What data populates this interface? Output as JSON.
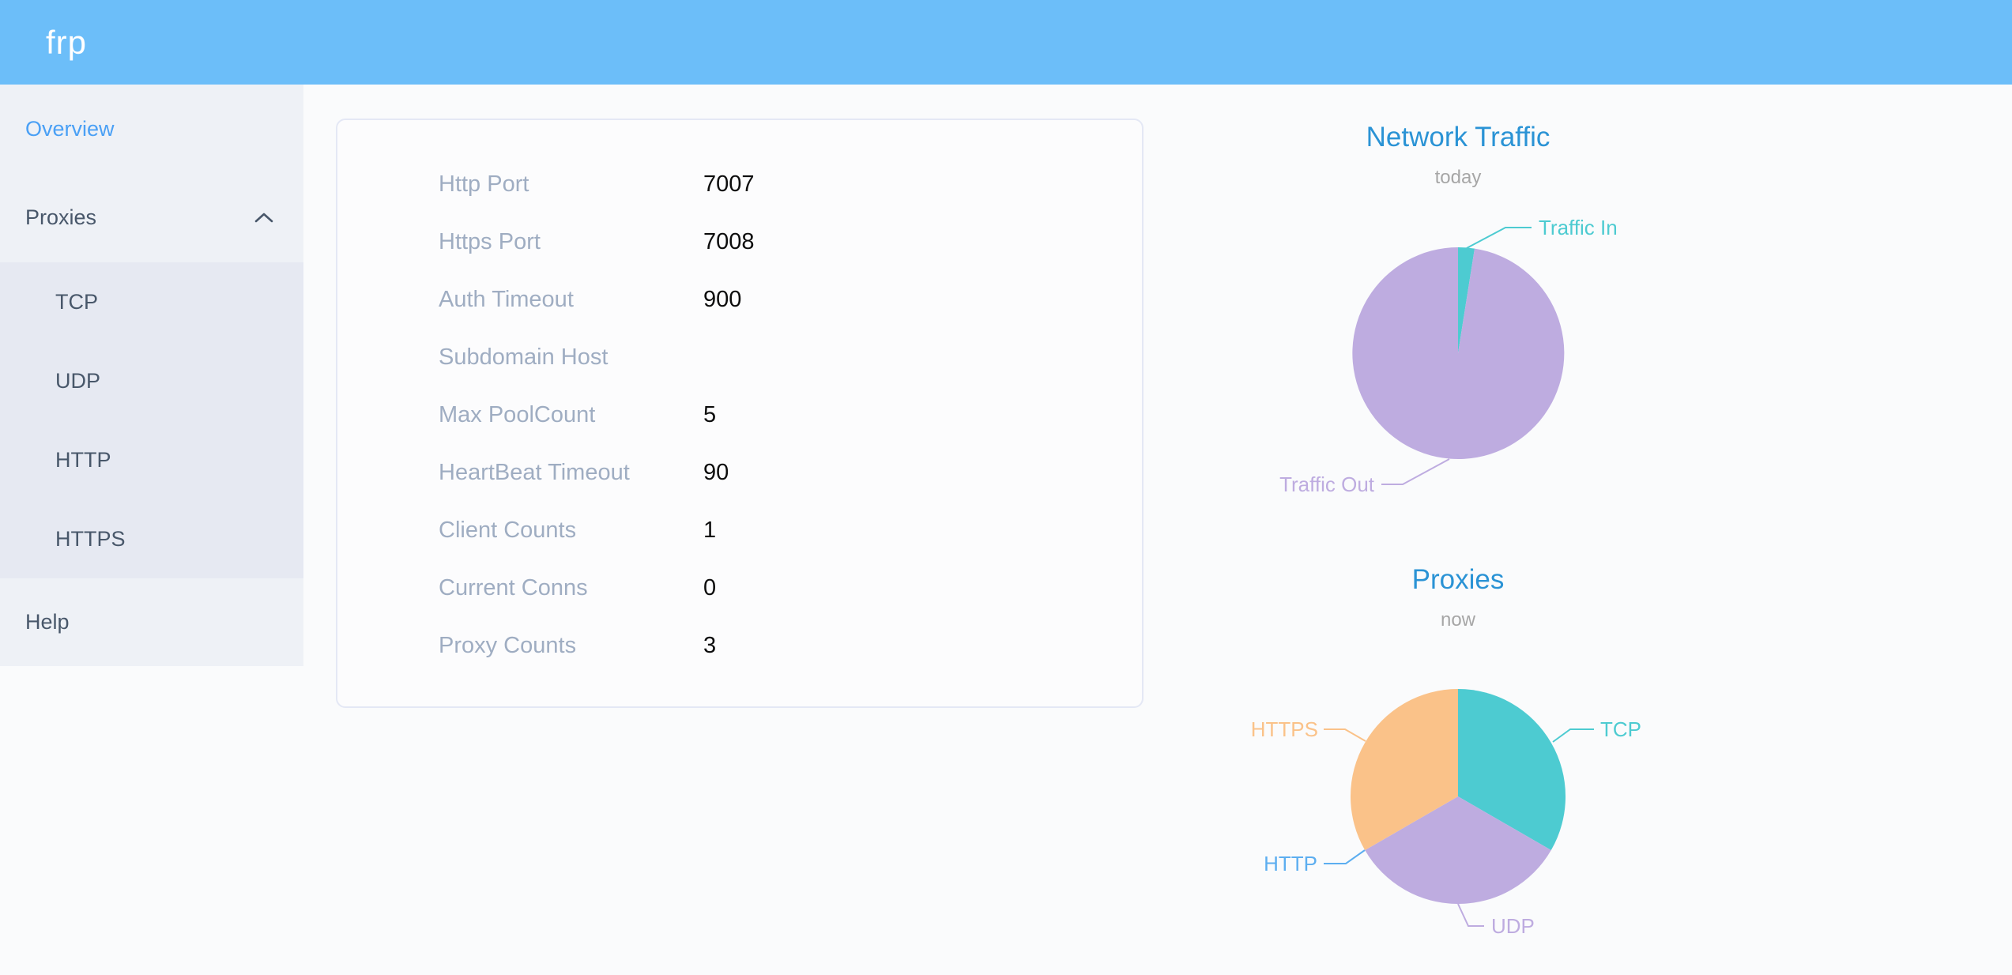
{
  "header": {
    "logo_text": "frp",
    "background_color": "#6cbef9"
  },
  "sidebar": {
    "overview": {
      "label": "Overview",
      "active": true
    },
    "proxies": {
      "label": "Proxies",
      "expanded": true,
      "children": [
        {
          "label": "TCP"
        },
        {
          "label": "UDP"
        },
        {
          "label": "HTTP"
        },
        {
          "label": "HTTPS"
        }
      ]
    },
    "help": {
      "label": "Help"
    }
  },
  "server_info": {
    "rows": [
      {
        "label": "Http Port",
        "value": "7007"
      },
      {
        "label": "Https Port",
        "value": "7008"
      },
      {
        "label": "Auth Timeout",
        "value": "900"
      },
      {
        "label": "Subdomain Host",
        "value": ""
      },
      {
        "label": "Max PoolCount",
        "value": "5"
      },
      {
        "label": "HeartBeat Timeout",
        "value": "90"
      },
      {
        "label": "Client Counts",
        "value": "1"
      },
      {
        "label": "Current Conns",
        "value": "0"
      },
      {
        "label": "Proxy Counts",
        "value": "3"
      }
    ]
  },
  "colors": {
    "header_bar": "#6cbef9",
    "active_menu_item": "#4aa0f5",
    "menu_text": "#48576a",
    "chart_title": "#2a93d5",
    "chart_subtitle": "#a6a6a6"
  },
  "chart_data": [
    {
      "type": "pie",
      "title": "Network Traffic",
      "subtitle": "today",
      "labels_style": "callout",
      "slices": [
        {
          "label": "Traffic In",
          "value": 2.5,
          "color": "#4dcbd1"
        },
        {
          "label": "Traffic Out",
          "value": 97.5,
          "color": "#beace0"
        }
      ]
    },
    {
      "type": "pie",
      "title": "Proxies",
      "subtitle": "now",
      "labels_style": "callout",
      "slices": [
        {
          "label": "TCP",
          "value": 1,
          "color": "#4dcbd1"
        },
        {
          "label": "UDP",
          "value": 1,
          "color": "#beace0"
        },
        {
          "label": "HTTP",
          "value": 0,
          "color": "#5caef0"
        },
        {
          "label": "HTTPS",
          "value": 1,
          "color": "#fac289"
        }
      ]
    }
  ]
}
